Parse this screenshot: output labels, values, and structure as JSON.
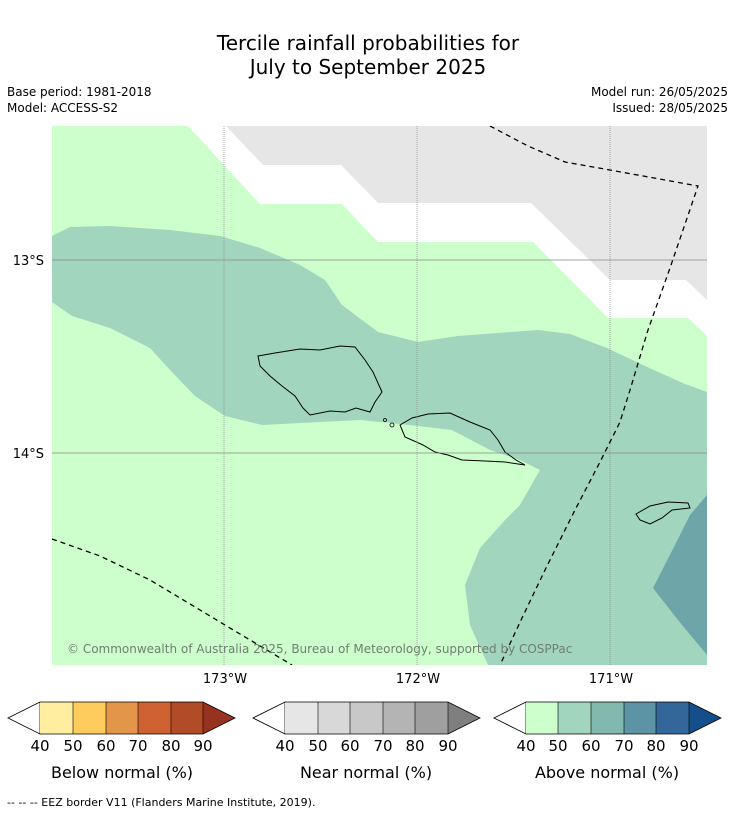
{
  "title": {
    "line1": "Tercile rainfall probabilities for",
    "line2": "July to September 2025"
  },
  "info_left": {
    "base_period": "Base period: 1981-2018",
    "model": "Model: ACCESS-S2"
  },
  "info_right": {
    "model_run": "Model run: 26/05/2025",
    "issued": "Issued: 28/05/2025"
  },
  "map": {
    "lat_labels": [
      "13°S",
      "14°S"
    ],
    "lon_labels": [
      "173°W",
      "172°W",
      "171°W"
    ],
    "copyright": "© Commonwealth of Australia 2025, Bureau of Meteorology, supported by COSPPac"
  },
  "colorbars": [
    {
      "label": "Below normal (%)",
      "ticks": [
        "40",
        "50",
        "60",
        "70",
        "80",
        "90"
      ],
      "colors": [
        "#ffeda0",
        "#fecc5c",
        "#e3964a",
        "#cf6232",
        "#b24b28",
        "#97321f"
      ]
    },
    {
      "label": "Near normal (%)",
      "ticks": [
        "40",
        "50",
        "60",
        "70",
        "80",
        "90"
      ],
      "colors": [
        "#e6e6e6",
        "#d8d8d8",
        "#c8c8c8",
        "#b4b4b4",
        "#9f9f9f",
        "#7f7f7f"
      ]
    },
    {
      "label": "Above normal (%)",
      "ticks": [
        "40",
        "50",
        "60",
        "70",
        "80",
        "90"
      ],
      "colors": [
        "#ccffcc",
        "#a1d5be",
        "#82b8ae",
        "#5c94a6",
        "#336699",
        "#144f8c"
      ]
    }
  ],
  "footer": "--  --  -- EEZ border V11 (Flanders Marine Institute, 2019)."
}
